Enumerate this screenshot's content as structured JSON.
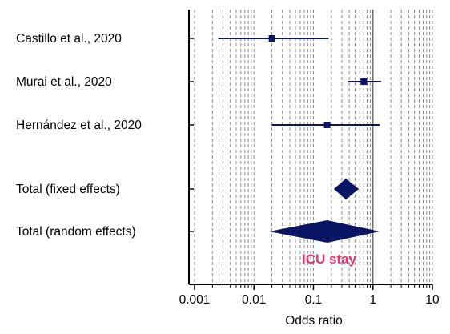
{
  "chart_data": {
    "type": "forest",
    "xlabel": "Odds ratio",
    "x_scale": "log",
    "xlim": [
      0.001,
      10
    ],
    "xticks": [
      {
        "value": 0.001,
        "label": "0.001"
      },
      {
        "value": 0.01,
        "label": "0.01"
      },
      {
        "value": 0.1,
        "label": "0.1"
      },
      {
        "value": 1,
        "label": "1"
      },
      {
        "value": 10,
        "label": "10"
      }
    ],
    "reference_line": 1,
    "grid": "vertical-dashed",
    "studies": [
      {
        "label": "Castillo et al., 2020",
        "estimate": 0.02,
        "ci_low": 0.0025,
        "ci_high": 0.18
      },
      {
        "label": "Murai et al., 2020",
        "estimate": 0.7,
        "ci_low": 0.38,
        "ci_high": 1.38
      },
      {
        "label": "Hernández et al., 2020",
        "estimate": 0.17,
        "ci_low": 0.02,
        "ci_high": 1.3
      }
    ],
    "totals": [
      {
        "label": "Total (fixed effects)",
        "estimate": 0.35,
        "ci_low": 0.22,
        "ci_high": 0.58
      },
      {
        "label": "Total (random effects)",
        "estimate": 0.17,
        "ci_low": 0.018,
        "ci_high": 1.3
      }
    ],
    "annotation": {
      "text": "ICU stay",
      "color": "#e8336c"
    },
    "colors": {
      "marker": "#0b1566",
      "grid": "#8a8a8a",
      "axis": "#000000"
    }
  }
}
